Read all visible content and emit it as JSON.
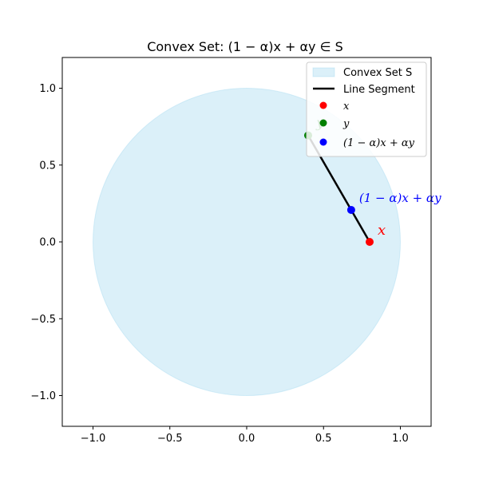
{
  "chart_data": {
    "type": "scatter",
    "title": "Convex Set: (1 − α)x + αy ∈ S",
    "xlabel": "",
    "ylabel": "",
    "xlim": [
      -1.2,
      1.2
    ],
    "ylim": [
      -1.2,
      1.2
    ],
    "xticks": [
      -1.0,
      -0.5,
      0.0,
      0.5,
      1.0
    ],
    "yticks": [
      -1.0,
      -0.5,
      0.0,
      0.5,
      1.0
    ],
    "xtick_labels": [
      "−1.0",
      "−0.5",
      "0.0",
      "0.5",
      "1.0"
    ],
    "ytick_labels": [
      "−1.0",
      "−0.5",
      "0.0",
      "0.5",
      "1.0"
    ],
    "grid": false,
    "legend_position": "top-right",
    "region": {
      "shape": "circle",
      "center": [
        0,
        0
      ],
      "radius": 1.0,
      "name": "Convex Set S",
      "color": "#87ceeb"
    },
    "segment": {
      "name": "Line Segment",
      "from": [
        0.8,
        0.0
      ],
      "to": [
        0.4,
        0.693
      ],
      "color": "#000000"
    },
    "points": [
      {
        "name": "x",
        "x": 0.8,
        "y": 0.0,
        "color": "#ff0000",
        "annotation": "x"
      },
      {
        "name": "y",
        "x": 0.4,
        "y": 0.693,
        "color": "#008000",
        "annotation": "y"
      },
      {
        "name": "(1 − α)x + αy",
        "x": 0.68,
        "y": 0.208,
        "color": "#0000ff",
        "annotation": "(1 − α)x + αy"
      }
    ]
  }
}
